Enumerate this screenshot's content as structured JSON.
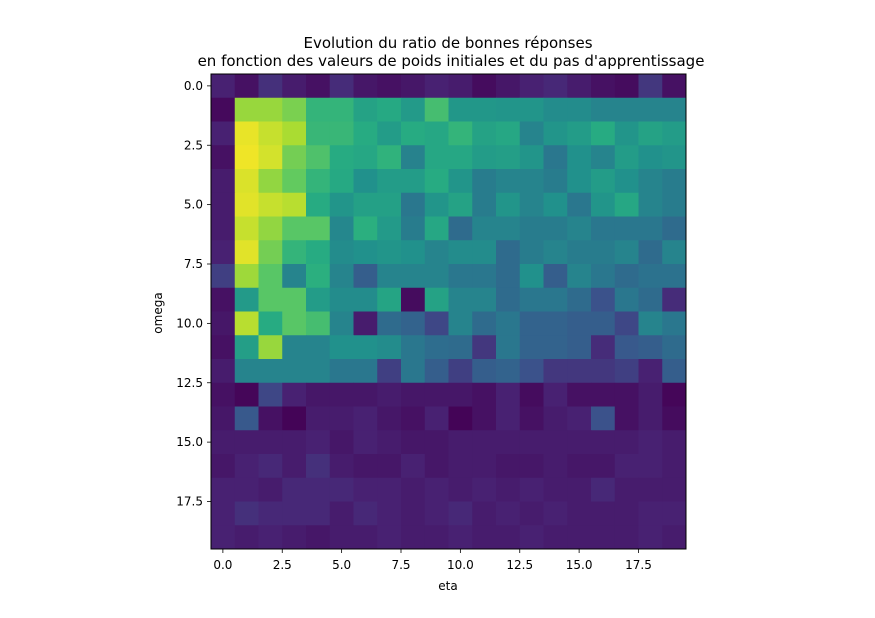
{
  "chart_data": {
    "type": "heatmap",
    "title_lines": [
      "Evolution du ratio de bonnes réponses",
      "en fonction des valeurs de poids initiales et du pas d'apprentissage"
    ],
    "xlabel": "eta",
    "ylabel": "omega",
    "x_tick_labels": [
      "0.0",
      "2.5",
      "5.0",
      "7.5",
      "10.0",
      "12.5",
      "15.0",
      "17.5"
    ],
    "y_tick_labels": [
      "0.0",
      "2.5",
      "5.0",
      "7.5",
      "10.0",
      "12.5",
      "15.0",
      "17.5"
    ],
    "x_ticks": [
      0,
      2.5,
      5,
      7.5,
      10,
      12.5,
      15,
      17.5
    ],
    "y_ticks": [
      0,
      2.5,
      5,
      7.5,
      10,
      12.5,
      15,
      17.5
    ],
    "xlim": [
      -0.5,
      19.5
    ],
    "ylim": [
      19.5,
      -0.5
    ],
    "colormap": "viridis",
    "vmin": 0,
    "vmax": 1,
    "values": [
      [
        0.12,
        0.06,
        0.16,
        0.1,
        0.06,
        0.15,
        0.08,
        0.06,
        0.08,
        0.12,
        0.1,
        0.04,
        0.08,
        0.12,
        0.14,
        0.1,
        0.06,
        0.04,
        0.18,
        0.06
      ],
      [
        0.03,
        0.85,
        0.85,
        0.8,
        0.66,
        0.66,
        0.58,
        0.61,
        0.54,
        0.7,
        0.53,
        0.53,
        0.52,
        0.52,
        0.48,
        0.48,
        0.45,
        0.45,
        0.45,
        0.45
      ],
      [
        0.12,
        0.97,
        0.92,
        0.88,
        0.67,
        0.67,
        0.62,
        0.55,
        0.62,
        0.6,
        0.66,
        0.58,
        0.6,
        0.45,
        0.52,
        0.55,
        0.62,
        0.52,
        0.58,
        0.55
      ],
      [
        0.06,
        0.98,
        0.94,
        0.79,
        0.72,
        0.62,
        0.6,
        0.65,
        0.44,
        0.6,
        0.6,
        0.55,
        0.56,
        0.52,
        0.4,
        0.5,
        0.45,
        0.55,
        0.5,
        0.52
      ],
      [
        0.1,
        0.95,
        0.84,
        0.76,
        0.66,
        0.61,
        0.5,
        0.55,
        0.55,
        0.62,
        0.52,
        0.42,
        0.45,
        0.45,
        0.42,
        0.5,
        0.55,
        0.5,
        0.45,
        0.42
      ],
      [
        0.1,
        0.96,
        0.92,
        0.9,
        0.62,
        0.52,
        0.57,
        0.57,
        0.4,
        0.52,
        0.58,
        0.42,
        0.52,
        0.45,
        0.5,
        0.4,
        0.52,
        0.6,
        0.45,
        0.42
      ],
      [
        0.1,
        0.92,
        0.84,
        0.74,
        0.74,
        0.46,
        0.64,
        0.54,
        0.42,
        0.6,
        0.35,
        0.45,
        0.45,
        0.42,
        0.42,
        0.45,
        0.4,
        0.4,
        0.4,
        0.35
      ],
      [
        0.12,
        0.96,
        0.79,
        0.66,
        0.62,
        0.48,
        0.5,
        0.52,
        0.5,
        0.45,
        0.48,
        0.48,
        0.35,
        0.42,
        0.45,
        0.42,
        0.42,
        0.45,
        0.35,
        0.45
      ],
      [
        0.2,
        0.86,
        0.74,
        0.45,
        0.64,
        0.45,
        0.3,
        0.45,
        0.45,
        0.45,
        0.4,
        0.4,
        0.35,
        0.5,
        0.3,
        0.45,
        0.4,
        0.35,
        0.38,
        0.38
      ],
      [
        0.06,
        0.54,
        0.74,
        0.74,
        0.55,
        0.48,
        0.48,
        0.59,
        0.04,
        0.58,
        0.45,
        0.45,
        0.35,
        0.4,
        0.4,
        0.35,
        0.25,
        0.4,
        0.35,
        0.15
      ],
      [
        0.08,
        0.9,
        0.62,
        0.74,
        0.7,
        0.45,
        0.1,
        0.35,
        0.32,
        0.22,
        0.45,
        0.35,
        0.4,
        0.32,
        0.32,
        0.3,
        0.3,
        0.22,
        0.45,
        0.4
      ],
      [
        0.06,
        0.56,
        0.85,
        0.45,
        0.45,
        0.5,
        0.5,
        0.48,
        0.4,
        0.36,
        0.35,
        0.18,
        0.4,
        0.32,
        0.32,
        0.3,
        0.15,
        0.28,
        0.3,
        0.35
      ],
      [
        0.1,
        0.45,
        0.45,
        0.45,
        0.45,
        0.4,
        0.4,
        0.2,
        0.4,
        0.3,
        0.2,
        0.3,
        0.32,
        0.25,
        0.18,
        0.18,
        0.18,
        0.2,
        0.12,
        0.3
      ],
      [
        0.06,
        0.02,
        0.22,
        0.12,
        0.08,
        0.08,
        0.08,
        0.1,
        0.08,
        0.08,
        0.08,
        0.06,
        0.12,
        0.04,
        0.12,
        0.06,
        0.06,
        0.06,
        0.1,
        0.02
      ],
      [
        0.08,
        0.28,
        0.06,
        0.01,
        0.1,
        0.1,
        0.12,
        0.08,
        0.06,
        0.12,
        0.01,
        0.06,
        0.12,
        0.06,
        0.1,
        0.12,
        0.25,
        0.06,
        0.1,
        0.04
      ],
      [
        0.1,
        0.1,
        0.1,
        0.1,
        0.12,
        0.08,
        0.12,
        0.1,
        0.08,
        0.08,
        0.1,
        0.1,
        0.1,
        0.1,
        0.1,
        0.1,
        0.1,
        0.1,
        0.12,
        0.1
      ],
      [
        0.08,
        0.12,
        0.14,
        0.1,
        0.16,
        0.1,
        0.08,
        0.08,
        0.12,
        0.08,
        0.1,
        0.1,
        0.08,
        0.08,
        0.1,
        0.08,
        0.08,
        0.12,
        0.12,
        0.1
      ],
      [
        0.12,
        0.12,
        0.1,
        0.14,
        0.14,
        0.14,
        0.12,
        0.12,
        0.1,
        0.12,
        0.1,
        0.12,
        0.1,
        0.12,
        0.1,
        0.1,
        0.14,
        0.1,
        0.1,
        0.1
      ],
      [
        0.12,
        0.16,
        0.14,
        0.14,
        0.14,
        0.1,
        0.14,
        0.12,
        0.1,
        0.12,
        0.14,
        0.1,
        0.12,
        0.1,
        0.12,
        0.1,
        0.1,
        0.1,
        0.12,
        0.12
      ],
      [
        0.12,
        0.1,
        0.12,
        0.1,
        0.08,
        0.1,
        0.1,
        0.12,
        0.1,
        0.1,
        0.12,
        0.1,
        0.1,
        0.12,
        0.1,
        0.1,
        0.1,
        0.1,
        0.12,
        0.1
      ]
    ]
  }
}
